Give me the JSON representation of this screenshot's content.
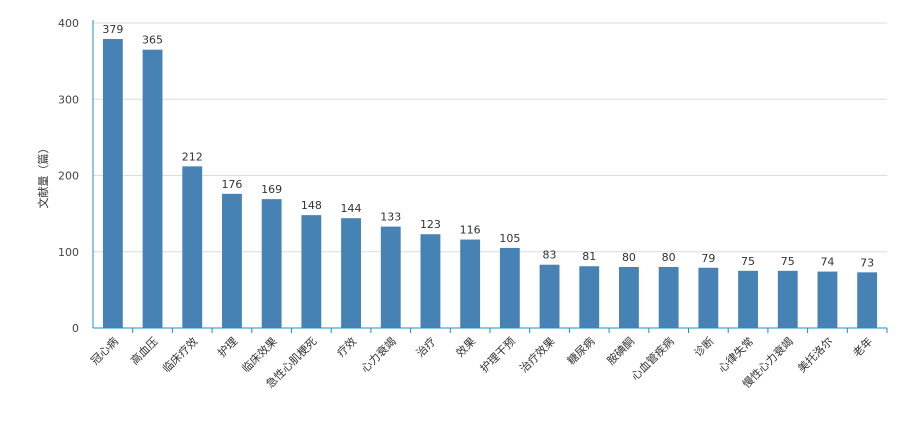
{
  "chart_data": {
    "type": "bar",
    "ylabel": "文献量（篇）",
    "xlabel": "",
    "ylim": [
      0,
      400
    ],
    "yticks": [
      0,
      100,
      200,
      300,
      400
    ],
    "grid": true,
    "categories": [
      "冠心病",
      "高血压",
      "临床疗效",
      "护理",
      "临床效果",
      "急性心肌梗死",
      "疗效",
      "心力衰竭",
      "治疗",
      "效果",
      "护理干预",
      "治疗效果",
      "糖尿病",
      "胺碘酮",
      "心血管疾病",
      "诊断",
      "心律失常",
      "慢性心力衰竭",
      "美托洛尔",
      "老年"
    ],
    "values": [
      379,
      365,
      212,
      176,
      169,
      148,
      144,
      133,
      123,
      116,
      105,
      83,
      81,
      80,
      80,
      79,
      75,
      75,
      74,
      73
    ],
    "bar_color": "#4682b4",
    "axis_color": "#1f8fbf"
  }
}
